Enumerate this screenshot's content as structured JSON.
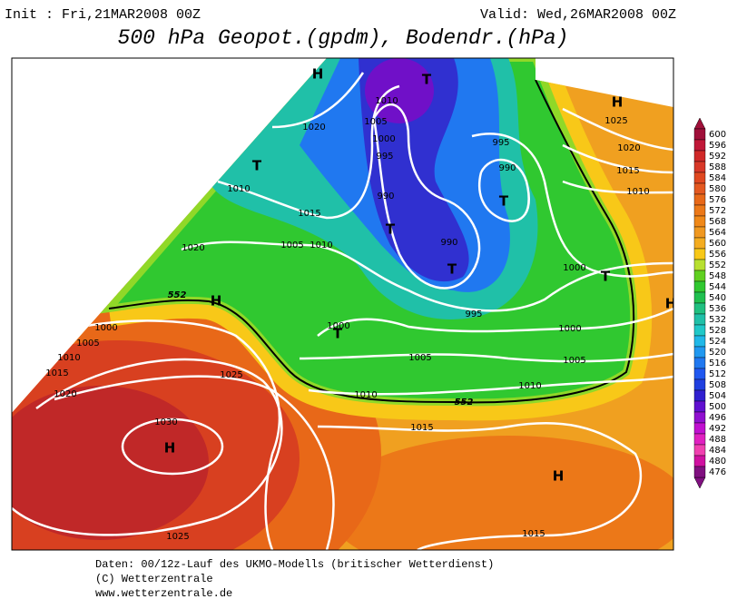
{
  "header": {
    "init": "Init : Fri,21MAR2008 00Z",
    "valid": "Valid: Wed,26MAR2008 00Z",
    "title": "500 hPa Geopot.(gpdm), Bodendr.(hPa)"
  },
  "map": {
    "pressure_centers": [
      "H",
      "T",
      "H",
      "T",
      "T",
      "T",
      "T",
      "H",
      "T",
      "T",
      "H",
      "H",
      "H"
    ],
    "isobar_labels": [
      1010,
      1005,
      1000,
      995,
      1020,
      1025,
      995,
      990,
      1020,
      1015,
      1010,
      1010,
      990,
      1015,
      990,
      1005,
      1010,
      1020,
      1000,
      995,
      1000,
      1000,
      1000,
      1005,
      1010,
      1015,
      1025,
      1005,
      1005,
      1020,
      1010,
      1010,
      1030,
      1015,
      1025,
      1015
    ],
    "contour_labels": [
      552,
      552
    ]
  },
  "colorbar": {
    "ticks": [
      600,
      596,
      592,
      588,
      584,
      580,
      576,
      572,
      568,
      564,
      560,
      556,
      552,
      548,
      544,
      540,
      536,
      532,
      528,
      524,
      520,
      516,
      512,
      508,
      504,
      500,
      496,
      492,
      488,
      484,
      480,
      476
    ],
    "colors": [
      "#a0103a",
      "#c01838",
      "#d02828",
      "#d83828",
      "#e04820",
      "#e45820",
      "#e86818",
      "#ec7818",
      "#f08818",
      "#f09820",
      "#f4ac20",
      "#f8c818",
      "#b8e030",
      "#60d020",
      "#30c830",
      "#20c050",
      "#20c080",
      "#20c0a8",
      "#20c8c8",
      "#20b8e8",
      "#2098f0",
      "#2078f0",
      "#2058f0",
      "#2040e0",
      "#3020d0",
      "#6010d0",
      "#9010d0",
      "#c010d0",
      "#e020c0",
      "#f040b0",
      "#d010a0",
      "#801080"
    ]
  },
  "footer": {
    "line1": "Daten: 00/12z-Lauf des UKMO-Modells (britischer Wetterdienst)",
    "line2": "(C) Wetterzentrale",
    "line3": "www.wetterzentrale.de"
  }
}
